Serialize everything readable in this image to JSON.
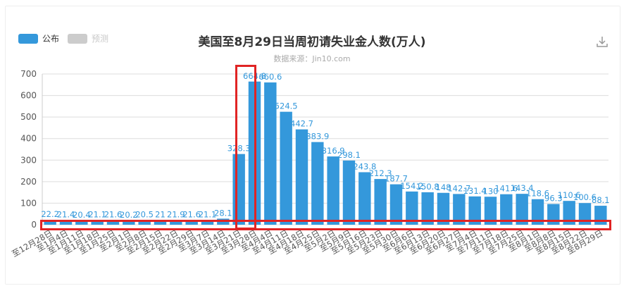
{
  "legend": [
    {
      "label": "公布",
      "color": "#3498db"
    },
    {
      "label": "预测",
      "color": "#cccccc"
    }
  ],
  "download_icon": "download-icon",
  "colors": {
    "bar": "#3498db",
    "label": "#3498db",
    "grid": "#dddddd",
    "annotation": "#e02424"
  },
  "chart_data": {
    "type": "bar",
    "title": "美国至8月29日当周初请失业金人数(万人)",
    "subtitle": "数据来源：Jin10.com",
    "ylim": [
      0,
      700
    ],
    "yticks": [
      0,
      100,
      200,
      300,
      400,
      500,
      600,
      700
    ],
    "grid": true,
    "legend_position": "top-left",
    "categories": [
      "至12月28日",
      "至1月4日",
      "至1月11日",
      "至1月18日",
      "至1月25日",
      "至2月1日",
      "至2月8日",
      "至2月15日",
      "至2月22日",
      "至2月29日",
      "至3月7日",
      "至3月14日",
      "至3月21日",
      "至3月28日",
      "至4月4日",
      "至4月11日",
      "至4月18日",
      "至4月25日",
      "至5月2日",
      "至5月9日",
      "至5月16日",
      "至5月23日",
      "至5月30日",
      "至6月6日",
      "至6月13日",
      "至6月20日",
      "至6月27日",
      "至7月4日",
      "至7月11日",
      "至7月18日",
      "至7月25日",
      "至8月1日",
      "至8月8日",
      "至8月15日",
      "至8月22日",
      "至8月29日"
    ],
    "series": [
      {
        "name": "公布",
        "values": [
          22.2,
          21.4,
          20.4,
          21.1,
          21.6,
          20.2,
          20.5,
          21,
          21.9,
          21.6,
          21.1,
          28.1,
          328.3,
          664.8,
          660.6,
          524.5,
          442.7,
          383.9,
          316.9,
          298.1,
          243.8,
          212.3,
          187.7,
          154.2,
          150.8,
          148,
          142.7,
          131.4,
          130,
          141.6,
          143.4,
          118.6,
          96.3,
          110.6,
          100.6,
          88.1
        ]
      }
    ]
  }
}
